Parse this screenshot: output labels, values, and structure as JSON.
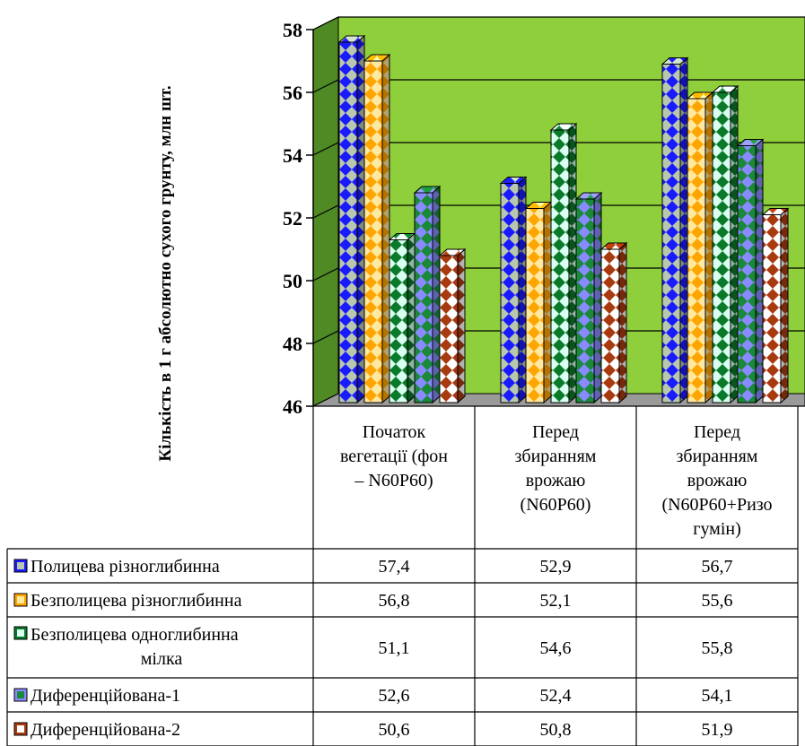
{
  "chart_data": {
    "type": "bar",
    "title": "",
    "ylabel": "Кількість в 1 г абсолютно сухого грунту, млн шт.",
    "xlabel": "",
    "ylim": [
      46,
      58
    ],
    "yticks": [
      46,
      48,
      50,
      52,
      54,
      56,
      58
    ],
    "grid": true,
    "legend": "table-below",
    "plot_background": "#8fcf3c",
    "categories": [
      [
        "Початок",
        "вегетації (фон",
        "– N60P60)"
      ],
      [
        "Перед",
        "збиранням",
        "врожаю",
        "(N60P60)"
      ],
      [
        "Перед",
        "збиранням",
        "врожаю",
        "(N60P60+Ризо",
        "гумін)"
      ]
    ],
    "series": [
      {
        "name": "Полицева різноглибинна",
        "values": [
          57.4,
          52.9,
          56.7
        ],
        "labels": [
          "57,4",
          "52,9",
          "56,7"
        ],
        "color": "#1a1aff",
        "alt": "#b8c8b0"
      },
      {
        "name": "Безполицева різноглибинна",
        "values": [
          56.8,
          52.1,
          55.6
        ],
        "labels": [
          "56,8",
          "52,1",
          "55,6"
        ],
        "color": "#ffa500",
        "alt": "#ffe8a0"
      },
      {
        "name": [
          "Безполицева одноглибинна",
          "мілка"
        ],
        "values": [
          51.1,
          54.6,
          55.8
        ],
        "labels": [
          "51,1",
          "54,6",
          "55,8"
        ],
        "color": "#0a7a2a",
        "alt": "#d8fff0"
      },
      {
        "name": "Диференційована-1",
        "values": [
          52.6,
          52.4,
          54.1
        ],
        "labels": [
          "52,6",
          "52,4",
          "54,1"
        ],
        "color": "#8a8aff",
        "alt": "#1a8a3a"
      },
      {
        "name": "Диференційована-2",
        "values": [
          50.6,
          50.8,
          51.9
        ],
        "labels": [
          "50,6",
          "50,8",
          "51,9"
        ],
        "color": "#a83a10",
        "alt": "#ffffff"
      }
    ]
  }
}
